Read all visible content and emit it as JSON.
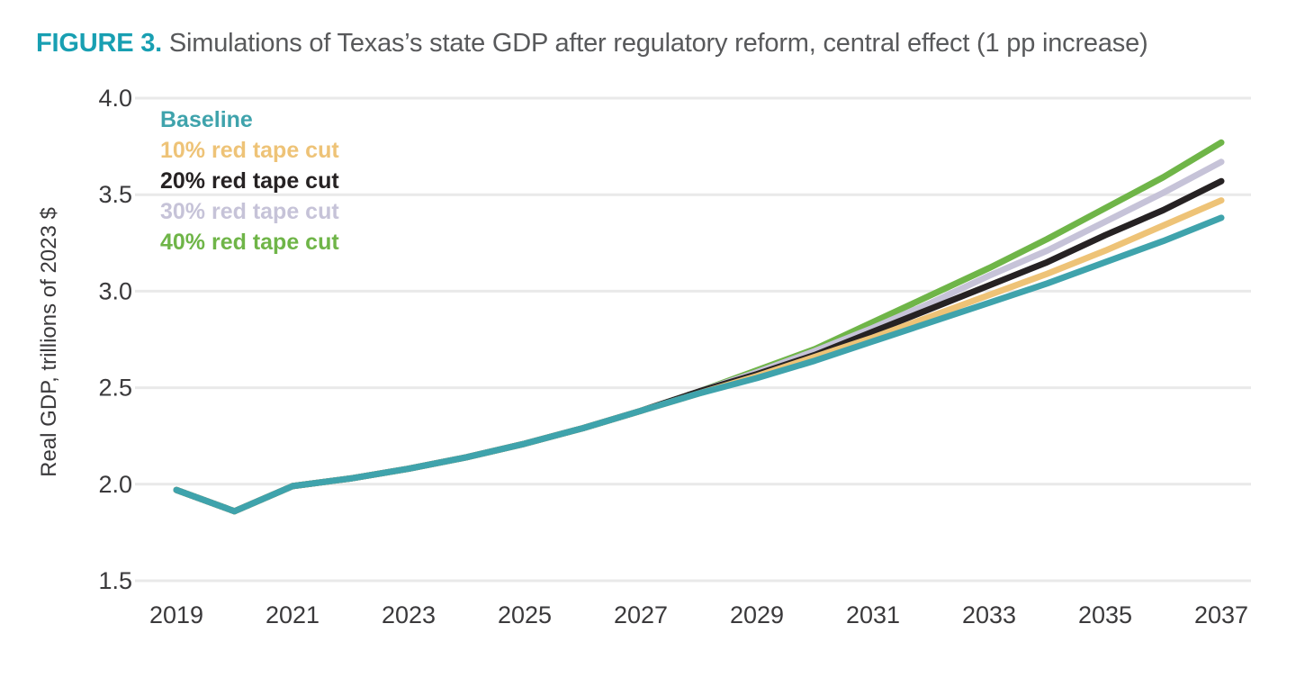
{
  "figure": {
    "label": "FIGURE 3.",
    "title": "Simulations of Texas’s state GDP after regulatory reform, central effect (1 pp increase)"
  },
  "colors": {
    "figure_label": "#189FB2",
    "title_text": "#58595B",
    "axis_text": "#3A393B",
    "gridline": "#E9E9E9",
    "background": "#FFFFFF"
  },
  "chart_data": {
    "type": "line",
    "title": "Simulations of Texas’s state GDP after regulatory reform, central effect (1 pp increase)",
    "xlabel": "",
    "ylabel": "Real GDP, trillions of 2023 $",
    "ylim": [
      1.5,
      4.0
    ],
    "y_ticks": [
      "4.0",
      "3.5",
      "3.0",
      "2.5",
      "2.0",
      "1.5"
    ],
    "y_tick_values": [
      4.0,
      3.5,
      3.0,
      2.5,
      2.0,
      1.5
    ],
    "x_ticks": [
      2019,
      2021,
      2023,
      2025,
      2027,
      2029,
      2031,
      2033,
      2035,
      2037
    ],
    "grid": "horizontal-only",
    "legend_position": "top-left",
    "x": [
      2019,
      2020,
      2021,
      2022,
      2023,
      2024,
      2025,
      2026,
      2027,
      2028,
      2029,
      2030,
      2031,
      2032,
      2033,
      2034,
      2035,
      2036,
      2037
    ],
    "series": [
      {
        "name": "Baseline",
        "color": "#3FA3AC",
        "values": [
          1.97,
          1.86,
          1.99,
          2.03,
          2.08,
          2.14,
          2.21,
          2.29,
          2.38,
          2.47,
          2.55,
          2.64,
          2.74,
          2.84,
          2.94,
          3.04,
          3.15,
          3.26,
          3.38
        ]
      },
      {
        "name": "10% red tape cut",
        "color": "#EEC377",
        "values": [
          1.97,
          1.86,
          1.99,
          2.03,
          2.08,
          2.14,
          2.21,
          2.29,
          2.38,
          2.47,
          2.56,
          2.66,
          2.76,
          2.87,
          2.98,
          3.09,
          3.21,
          3.34,
          3.47
        ]
      },
      {
        "name": "20% red tape cut",
        "color": "#262223",
        "values": [
          1.97,
          1.86,
          1.99,
          2.03,
          2.08,
          2.14,
          2.21,
          2.29,
          2.38,
          2.48,
          2.57,
          2.67,
          2.79,
          2.91,
          3.03,
          3.15,
          3.29,
          3.42,
          3.57
        ]
      },
      {
        "name": "30% red tape cut",
        "color": "#C6C3D8",
        "values": [
          1.97,
          1.86,
          1.99,
          2.03,
          2.08,
          2.14,
          2.21,
          2.29,
          2.38,
          2.48,
          2.58,
          2.69,
          2.81,
          2.94,
          3.08,
          3.21,
          3.36,
          3.51,
          3.67
        ]
      },
      {
        "name": "40% red tape cut",
        "color": "#6FB548",
        "values": [
          1.97,
          1.86,
          1.99,
          2.03,
          2.08,
          2.14,
          2.21,
          2.29,
          2.38,
          2.48,
          2.59,
          2.7,
          2.84,
          2.98,
          3.12,
          3.27,
          3.43,
          3.59,
          3.77
        ]
      }
    ]
  }
}
